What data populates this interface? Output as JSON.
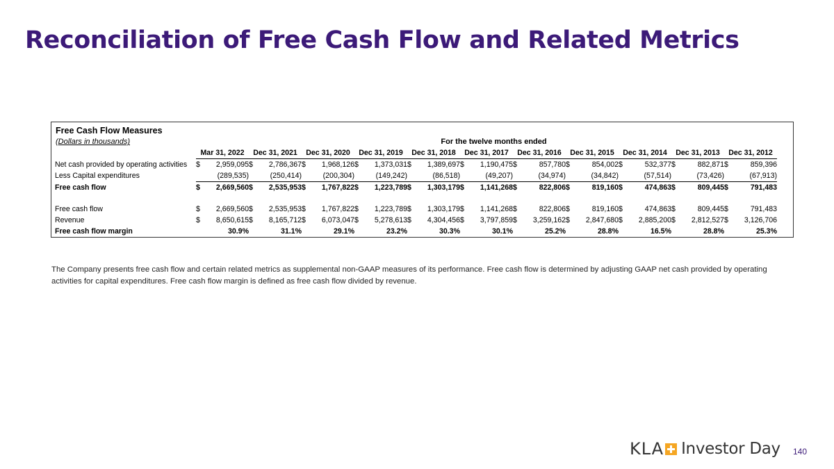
{
  "title": "Reconciliation of Free Cash Flow and Related Metrics",
  "table": {
    "heading": "Free Cash Flow Measures",
    "subheading": "(Dollars in thousands)",
    "period_label": "For the twelve months ended",
    "columns": [
      "Mar 31, 2022",
      "Dec 31, 2021",
      "Dec 31, 2020",
      "Dec 31, 2019",
      "Dec 31, 2018",
      "Dec 31, 2017",
      "Dec 31, 2016",
      "Dec 31, 2015",
      "Dec 31, 2014",
      "Dec 31, 2013",
      "Dec 31, 2012"
    ],
    "rows": [
      {
        "label": "Net cash provided by operating activities",
        "style": "normal",
        "cells": [
          [
            "$",
            "2,959,095"
          ],
          [
            "$",
            "2,786,367"
          ],
          [
            "$",
            "1,968,126"
          ],
          [
            "$",
            "1,373,031"
          ],
          [
            "$",
            "1,389,697"
          ],
          [
            "$",
            "1,190,475"
          ],
          [
            "$",
            "857,780"
          ],
          [
            "$",
            "854,002"
          ],
          [
            "$",
            "532,377"
          ],
          [
            "$",
            "882,871"
          ],
          [
            "$",
            "859,396"
          ]
        ]
      },
      {
        "label": "Less Capital expenditures",
        "style": "underline",
        "cells": [
          [
            "",
            "(289,535)"
          ],
          [
            "",
            "(250,414)"
          ],
          [
            "",
            "(200,304)"
          ],
          [
            "",
            "(149,242)"
          ],
          [
            "",
            "(86,518)"
          ],
          [
            "",
            "(49,207)"
          ],
          [
            "",
            "(34,974)"
          ],
          [
            "",
            "(34,842)"
          ],
          [
            "",
            "(57,514)"
          ],
          [
            "",
            "(73,426)"
          ],
          [
            "",
            "(67,913)"
          ]
        ]
      },
      {
        "label": "Free cash flow",
        "style": "bold",
        "cells": [
          [
            "$",
            "2,669,560"
          ],
          [
            "$",
            "2,535,953"
          ],
          [
            "$",
            "1,767,822"
          ],
          [
            "$",
            "1,223,789"
          ],
          [
            "$",
            "1,303,179"
          ],
          [
            "$",
            "1,141,268"
          ],
          [
            "$",
            "822,806"
          ],
          [
            "$",
            "819,160"
          ],
          [
            "$",
            "474,863"
          ],
          [
            "$",
            "809,445"
          ],
          [
            "$",
            "791,483"
          ]
        ]
      },
      {
        "label": "",
        "style": "spacer",
        "cells": []
      },
      {
        "label": "Free cash flow",
        "style": "normal",
        "cells": [
          [
            "$",
            "2,669,560"
          ],
          [
            "$",
            "2,535,953"
          ],
          [
            "$",
            "1,767,822"
          ],
          [
            "$",
            "1,223,789"
          ],
          [
            "$",
            "1,303,179"
          ],
          [
            "$",
            "1,141,268"
          ],
          [
            "$",
            "822,806"
          ],
          [
            "$",
            "819,160"
          ],
          [
            "$",
            "474,863"
          ],
          [
            "$",
            "809,445"
          ],
          [
            "$",
            "791,483"
          ]
        ]
      },
      {
        "label": "Revenue",
        "style": "normal",
        "cells": [
          [
            "$",
            "8,650,615"
          ],
          [
            "$",
            "8,165,712"
          ],
          [
            "$",
            "6,073,047"
          ],
          [
            "$",
            "5,278,613"
          ],
          [
            "$",
            "4,304,456"
          ],
          [
            "$",
            "3,797,859"
          ],
          [
            "$",
            "3,259,162"
          ],
          [
            "$",
            "2,847,680"
          ],
          [
            "$",
            "2,885,200"
          ],
          [
            "$",
            "2,812,527"
          ],
          [
            "$",
            "3,126,706"
          ]
        ]
      },
      {
        "label": "Free cash flow margin",
        "style": "bold",
        "cells": [
          [
            "",
            "30.9%"
          ],
          [
            "",
            "31.1%"
          ],
          [
            "",
            "29.1%"
          ],
          [
            "",
            "23.2%"
          ],
          [
            "",
            "30.3%"
          ],
          [
            "",
            "30.1%"
          ],
          [
            "",
            "25.2%"
          ],
          [
            "",
            "28.8%"
          ],
          [
            "",
            "16.5%"
          ],
          [
            "",
            "28.8%"
          ],
          [
            "",
            "25.3%"
          ]
        ]
      }
    ]
  },
  "footnote": "The Company presents free cash flow and certain related metrics as supplemental non-GAAP measures of its performance. Free cash flow is determined by adjusting GAAP net cash provided by operating activities for capital expenditures. Free cash flow margin is defined as free cash flow divided by revenue.",
  "footer": {
    "logo_brand": "KLA",
    "logo_text": "Investor Day",
    "page_number": "140"
  },
  "colors": {
    "title": "#3c1a78",
    "logo_plus": "#f5a623"
  }
}
